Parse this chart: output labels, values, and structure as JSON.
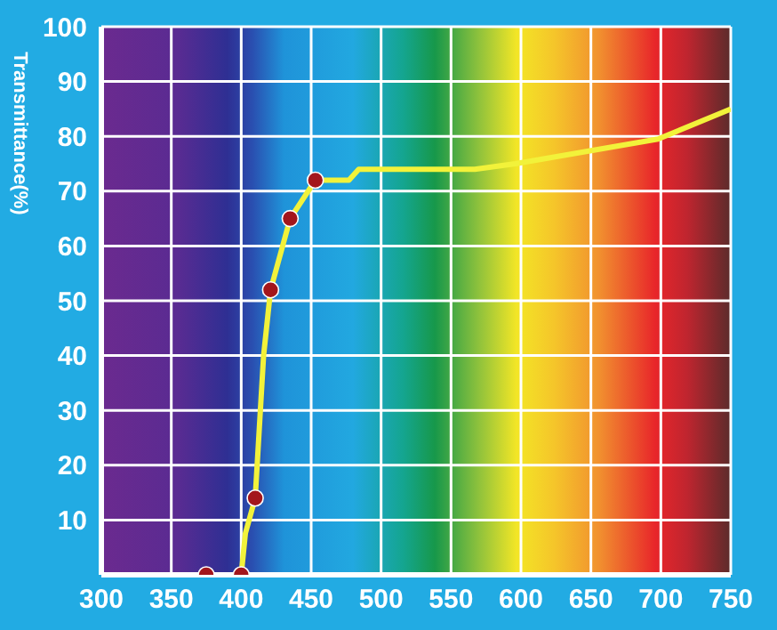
{
  "chart_data": {
    "type": "line",
    "ylabel": "Transmittance(%)",
    "xlim": [
      300,
      750
    ],
    "xticks": [
      300,
      350,
      400,
      450,
      500,
      550,
      600,
      650,
      700,
      750
    ],
    "ylim": [
      0,
      100
    ],
    "yticks": [
      {
        "value": 0,
        "label": null
      },
      10,
      20,
      30,
      40,
      50,
      60,
      70,
      80,
      90,
      100
    ],
    "grid": true,
    "series": [
      {
        "color": "#f2f23a",
        "marker": "none",
        "x": [
          300,
          375,
          400,
          403,
          410,
          416,
          421,
          435,
          453,
          462,
          477,
          484,
          567,
          596,
          698,
          750
        ],
        "values": [
          0,
          0,
          0,
          7.6,
          14,
          40,
          52,
          65,
          72,
          72,
          72,
          74,
          74,
          75,
          79.5,
          85
        ]
      },
      {
        "type": "scatter",
        "color": "#a3161c",
        "marker": "circle",
        "x": [
          375,
          400,
          410,
          421,
          435,
          453
        ],
        "values": [
          0,
          0,
          14,
          52,
          65,
          72
        ]
      }
    ]
  }
}
